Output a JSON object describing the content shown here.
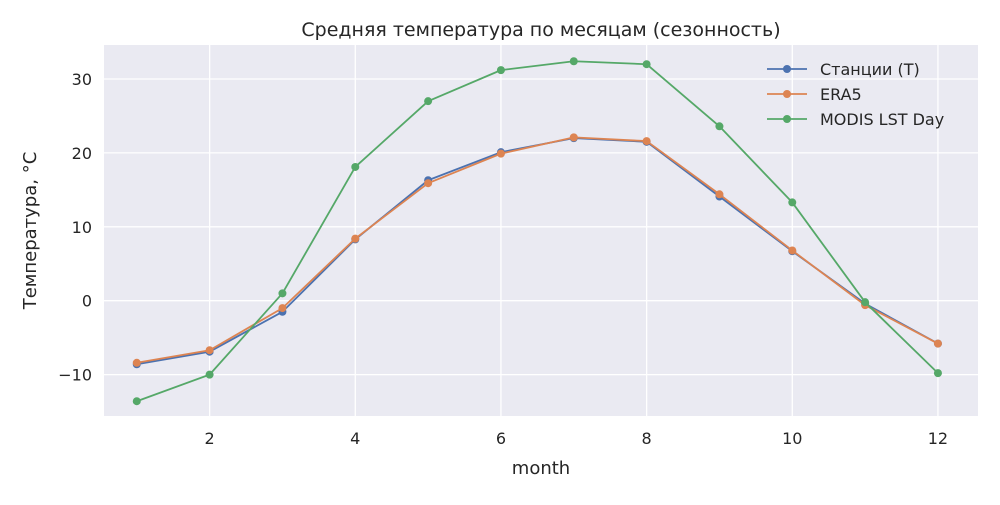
{
  "chart_data": {
    "type": "line",
    "title": "Средняя температура по месяцам (сезонность)",
    "xlabel": "month",
    "ylabel": "Температура, °C",
    "xlim": [
      0.55,
      12.55
    ],
    "ylim": [
      -15.6,
      34.6
    ],
    "x_ticks": [
      2,
      4,
      6,
      8,
      10,
      12
    ],
    "y_ticks": [
      -10,
      0,
      10,
      20,
      30
    ],
    "y_tick_labels": [
      "−10",
      "0",
      "10",
      "20",
      "30"
    ],
    "grid": true,
    "legend_position": "top-right",
    "x": [
      1,
      2,
      3,
      4,
      5,
      6,
      7,
      8,
      9,
      10,
      11,
      12
    ],
    "series": [
      {
        "name": "Станции (T)",
        "color": "#4c72b0",
        "values": [
          -8.6,
          -6.9,
          -1.5,
          8.3,
          16.3,
          20.1,
          22.0,
          21.5,
          14.1,
          6.7,
          -0.4,
          -5.8
        ]
      },
      {
        "name": "ERA5",
        "color": "#dd8452",
        "values": [
          -8.4,
          -6.7,
          -1.0,
          8.4,
          15.9,
          19.9,
          22.1,
          21.6,
          14.4,
          6.8,
          -0.6,
          -5.8
        ]
      },
      {
        "name": "MODIS LST Day",
        "color": "#55a868",
        "values": [
          -13.6,
          -10.0,
          1.0,
          18.1,
          27.0,
          31.2,
          32.4,
          32.0,
          23.6,
          13.3,
          -0.2,
          -9.8
        ]
      }
    ]
  }
}
